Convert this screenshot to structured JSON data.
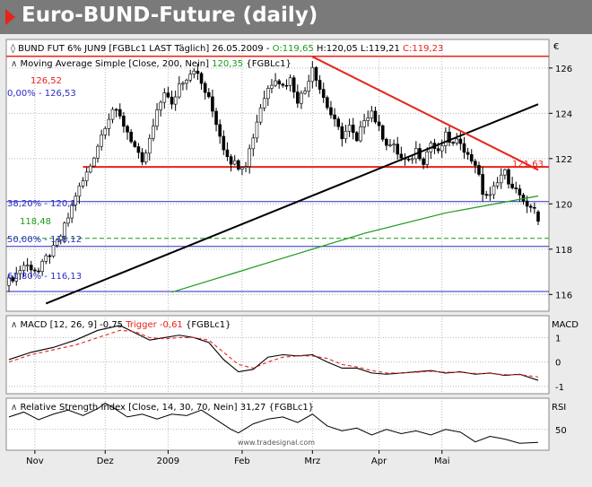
{
  "header": {
    "title": "Euro-BUND-Future (daily)"
  },
  "legend": {
    "line1_prefix": "BUND FUT 6% JUN9 [FGBLc1 LAST Täglich] 26.05.2009 - ",
    "line1_open": "O:119,65",
    "line1_hl": " H:120,05 L:119,21 ",
    "line1_close": "C:119,23",
    "line2_label": "Moving Average Simple [Close, 200, Nein]",
    "line2_value": "120,35",
    "line2_suffix": "{FGBLc1}",
    "currency_symbol": "€"
  },
  "price_labels": {
    "fib0": "0,00% - 126,53",
    "fib382": "38,20% - 120,1",
    "fib50": "50,00% - 118,12",
    "fib618": "61,80% - 116,13",
    "resistance": "126,52",
    "dashed": "118,48",
    "channel": "121,63"
  },
  "macd_panel": {
    "legend_label": "MACD [12, 26, 9]",
    "legend_value": "-0,75",
    "trigger_label": "Trigger",
    "trigger_value": "-0,61",
    "source": "{FGBLc1}",
    "axis_title": "MACD"
  },
  "rsi_panel": {
    "legend": "Relative Strength Index [Close, 14, 30, 70, Nein] 31,27 {FGBLc1}",
    "axis_title": "RSI"
  },
  "watermark": "www.tradesignal.com",
  "chart_data": [
    {
      "type": "candlestick",
      "title": "BUND FUT 6% JUN9 [FGBLc1 LAST Täglich] 26.05.2009",
      "x_ticks": [
        "Nov",
        "Dez",
        "2009",
        "Feb",
        "Mrz",
        "Apr",
        "Mai"
      ],
      "y_ticks": [
        116,
        118,
        120,
        122,
        124,
        126
      ],
      "ylim": [
        115.3,
        127.3
      ],
      "last_bar": {
        "date": "26.05.2009",
        "open": 119.65,
        "high": 120.05,
        "low": 119.21,
        "close": 119.23
      },
      "close_path": [
        [
          0,
          116.6
        ],
        [
          2,
          116.9
        ],
        [
          4,
          117.3
        ],
        [
          6,
          117.2
        ],
        [
          8,
          117.0
        ],
        [
          10,
          117.6
        ],
        [
          12,
          118.0
        ],
        [
          14,
          118.6
        ],
        [
          16,
          119.4
        ],
        [
          18,
          120.4
        ],
        [
          20,
          121.0
        ],
        [
          22,
          121.7
        ],
        [
          24,
          122.6
        ],
        [
          26,
          123.5
        ],
        [
          28,
          124.2
        ],
        [
          30,
          123.8
        ],
        [
          32,
          123.2
        ],
        [
          34,
          122.5
        ],
        [
          36,
          121.7
        ],
        [
          38,
          122.8
        ],
        [
          40,
          124.0
        ],
        [
          42,
          125.0
        ],
        [
          44,
          124.3
        ],
        [
          46,
          125.3
        ],
        [
          48,
          125.6
        ],
        [
          50,
          126.0
        ],
        [
          52,
          125.3
        ],
        [
          54,
          124.6
        ],
        [
          56,
          123.6
        ],
        [
          58,
          122.5
        ],
        [
          60,
          121.9
        ],
        [
          62,
          121.7
        ],
        [
          64,
          121.8
        ],
        [
          66,
          123.0
        ],
        [
          68,
          124.3
        ],
        [
          70,
          125.1
        ],
        [
          72,
          125.6
        ],
        [
          74,
          125.2
        ],
        [
          76,
          125.5
        ],
        [
          78,
          124.6
        ],
        [
          80,
          125.0
        ],
        [
          82,
          126.1
        ],
        [
          84,
          125.1
        ],
        [
          86,
          124.3
        ],
        [
          88,
          123.6
        ],
        [
          90,
          123.0
        ],
        [
          92,
          123.4
        ],
        [
          94,
          122.7
        ],
        [
          96,
          123.8
        ],
        [
          98,
          124.1
        ],
        [
          100,
          123.3
        ],
        [
          102,
          122.7
        ],
        [
          104,
          122.5
        ],
        [
          106,
          122.0
        ],
        [
          108,
          121.8
        ],
        [
          110,
          122.4
        ],
        [
          112,
          121.9
        ],
        [
          114,
          122.7
        ],
        [
          116,
          122.2
        ],
        [
          118,
          123.0
        ],
        [
          120,
          122.6
        ],
        [
          122,
          122.8
        ],
        [
          124,
          122.1
        ],
        [
          126,
          121.8
        ],
        [
          128,
          120.5
        ],
        [
          130,
          120.3
        ],
        [
          132,
          121.1
        ],
        [
          134,
          121.4
        ],
        [
          136,
          120.6
        ],
        [
          138,
          120.5
        ],
        [
          140,
          119.8
        ],
        [
          142,
          119.7
        ],
        [
          143,
          119.23
        ]
      ],
      "moving_average_200": [
        [
          44,
          116.1
        ],
        [
          70,
          117.4
        ],
        [
          96,
          118.7
        ],
        [
          118,
          119.6
        ],
        [
          143,
          120.35
        ]
      ],
      "trendlines": {
        "support": [
          [
            10,
            115.6
          ],
          [
            143,
            124.4
          ]
        ],
        "resistance_falling": [
          [
            82,
            126.5
          ],
          [
            143,
            121.5
          ]
        ],
        "horizontal_resistance": 121.63,
        "horizontal_top": 126.52,
        "dashed_level": 118.48
      },
      "fibonacci": [
        {
          "label": "0,00%",
          "value": 126.53
        },
        {
          "label": "38,20%",
          "value": 120.1
        },
        {
          "label": "50,00%",
          "value": 118.12
        },
        {
          "label": "61,80%",
          "value": 116.13
        }
      ]
    },
    {
      "type": "line",
      "title": "MACD [12, 26, 9]",
      "y_ticks": [
        -1,
        0,
        1
      ],
      "ylim": [
        -1.3,
        1.9
      ],
      "series": [
        {
          "name": "MACD",
          "color": "#000000",
          "x": [
            0,
            6,
            12,
            18,
            24,
            30,
            34,
            38,
            42,
            46,
            50,
            54,
            58,
            62,
            66,
            70,
            74,
            78,
            82,
            86,
            90,
            94,
            98,
            102,
            106,
            110,
            114,
            118,
            122,
            126,
            130,
            134,
            138,
            143
          ],
          "values": [
            0.1,
            0.4,
            0.6,
            0.9,
            1.3,
            1.5,
            1.2,
            0.9,
            1.0,
            1.1,
            1.0,
            0.8,
            0.1,
            -0.4,
            -0.3,
            0.2,
            0.3,
            0.25,
            0.3,
            0.0,
            -0.25,
            -0.25,
            -0.45,
            -0.5,
            -0.45,
            -0.4,
            -0.35,
            -0.45,
            -0.4,
            -0.5,
            -0.45,
            -0.55,
            -0.5,
            -0.75
          ]
        },
        {
          "name": "Trigger",
          "color": "#e8231a",
          "x": [
            0,
            6,
            12,
            18,
            24,
            30,
            34,
            38,
            42,
            46,
            50,
            54,
            58,
            62,
            66,
            70,
            74,
            78,
            82,
            86,
            90,
            94,
            98,
            102,
            106,
            110,
            114,
            118,
            122,
            126,
            130,
            134,
            138,
            143
          ],
          "values": [
            0.0,
            0.3,
            0.5,
            0.7,
            1.0,
            1.3,
            1.25,
            1.0,
            0.95,
            1.0,
            1.0,
            0.9,
            0.4,
            -0.1,
            -0.25,
            0.0,
            0.2,
            0.25,
            0.25,
            0.15,
            -0.1,
            -0.2,
            -0.35,
            -0.45,
            -0.45,
            -0.42,
            -0.38,
            -0.42,
            -0.42,
            -0.47,
            -0.47,
            -0.52,
            -0.52,
            -0.61
          ]
        }
      ]
    },
    {
      "type": "line",
      "title": "Relative Strength Index [Close, 14, 30, 70, Nein]",
      "y_ticks": [
        50
      ],
      "ylim": [
        20,
        95
      ],
      "series": [
        {
          "name": "Relative Strength Index",
          "color": "#000000",
          "x": [
            0,
            4,
            8,
            12,
            16,
            20,
            24,
            26,
            28,
            32,
            36,
            40,
            44,
            48,
            52,
            56,
            60,
            62,
            66,
            70,
            74,
            78,
            82,
            86,
            90,
            94,
            98,
            102,
            106,
            110,
            114,
            118,
            122,
            126,
            130,
            134,
            138,
            143
          ],
          "values": [
            68,
            75,
            64,
            72,
            78,
            70,
            80,
            88,
            82,
            68,
            72,
            65,
            72,
            70,
            78,
            64,
            50,
            45,
            58,
            65,
            68,
            60,
            72,
            55,
            48,
            52,
            42,
            50,
            44,
            48,
            42,
            50,
            46,
            32,
            40,
            36,
            30,
            31.27
          ]
        }
      ]
    }
  ]
}
